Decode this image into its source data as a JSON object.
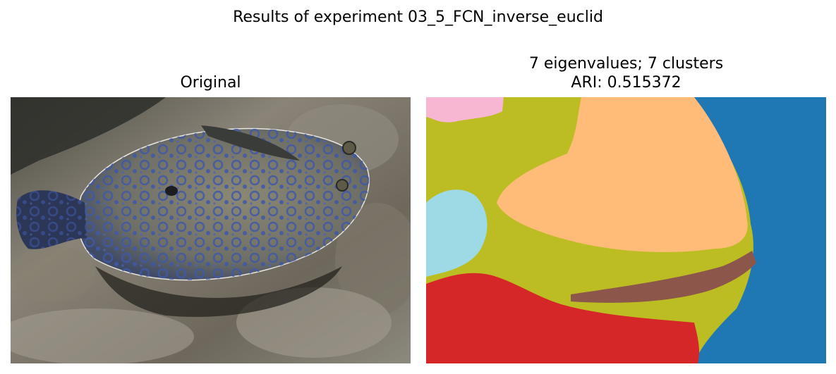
{
  "figure": {
    "suptitle": "Results of experiment 03_5_FCN_inverse_euclid"
  },
  "left_panel": {
    "title": "Original",
    "image": "underwater photo of a peacock flounder with blue ring spots resting on sandy, rocky sea floor"
  },
  "right_panel": {
    "title_line1": "7 eigenvalues; 7 clusters",
    "title_line2": "ARI: 0.515372",
    "image": "segmentation map of the flounder photo with 7 cluster colors",
    "cluster_colors": {
      "olive": "#bcbd22",
      "orange": "#ffbb78",
      "blue": "#1f77b4",
      "red": "#d62728",
      "brown": "#8c564b",
      "cyan": "#9edae5",
      "pink": "#f7b6d2"
    }
  }
}
